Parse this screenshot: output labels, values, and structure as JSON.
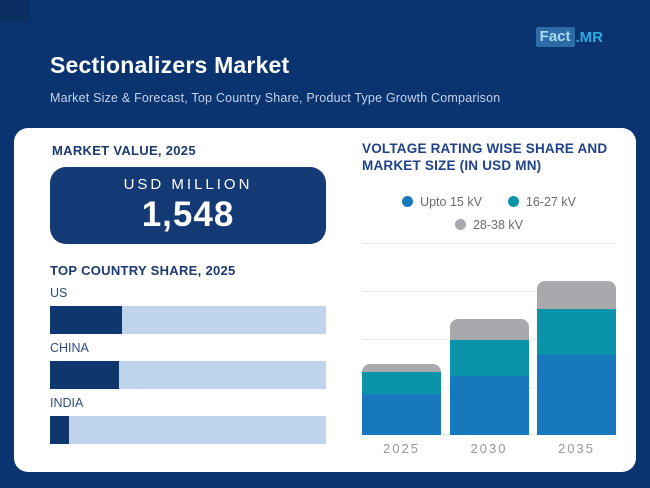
{
  "header": {
    "logo": {
      "name": "Fact.MR",
      "part_boxed": "Fact",
      "part_suffix": ".MR"
    },
    "title": "Sectionalizers Market",
    "subtitle": "Market Size & Forecast, Top Country Share, Product Type Growth Comparison"
  },
  "market_value": {
    "heading": "MARKET VALUE, 2025",
    "unit_label": "USD MILLION",
    "value": "1,548"
  },
  "voltage_section": {
    "heading_line1": "VOLTAGE RATING WISE SHARE AND",
    "heading_line2": "MARKET SIZE (IN USD MN)"
  },
  "colors": {
    "background": "#0a346f",
    "card": "#ffffff",
    "value_box": "#133a75",
    "accent_cyan": "#2fabe2",
    "heading_navy": "#1a3a70",
    "heading_blue": "#1e4289"
  },
  "chart_data": [
    {
      "type": "bar",
      "orientation": "horizontal",
      "title": "TOP COUNTRY SHARE, 2025",
      "categories": [
        "US",
        "CHINA",
        "INDIA"
      ],
      "values": [
        26,
        25,
        7
      ],
      "value_unit": "percent of full track width (estimated, no numeric labels shown)",
      "xlim": [
        0,
        100
      ],
      "grid": false,
      "bar_color": "#10366e",
      "track_color": "#bfd3ed"
    },
    {
      "type": "bar",
      "stacked": true,
      "title": "VOLTAGE RATING WISE SHARE AND MARKET SIZE (IN USD MN)",
      "categories": [
        "2025",
        "2030",
        "2035"
      ],
      "series": [
        {
          "name": "Upto 15 kV",
          "color": "#1778bd",
          "values": [
            895,
            1285,
            1725
          ]
        },
        {
          "name": "16-27 kV",
          "color": "#0a93a9",
          "values": [
            460,
            770,
            1005
          ]
        },
        {
          "name": "28-38 kV",
          "color": "#a7a9ac",
          "values": [
            195,
            475,
            630
          ]
        }
      ],
      "totals_estimated": [
        1550,
        2530,
        3360
      ],
      "ylabel": "USD MN",
      "note": "No y-axis tick labels shown; values estimated from bar heights with 2025 total anchored to the stated 1,548 USD MN market value",
      "legend_position": "top",
      "grid": true
    }
  ]
}
